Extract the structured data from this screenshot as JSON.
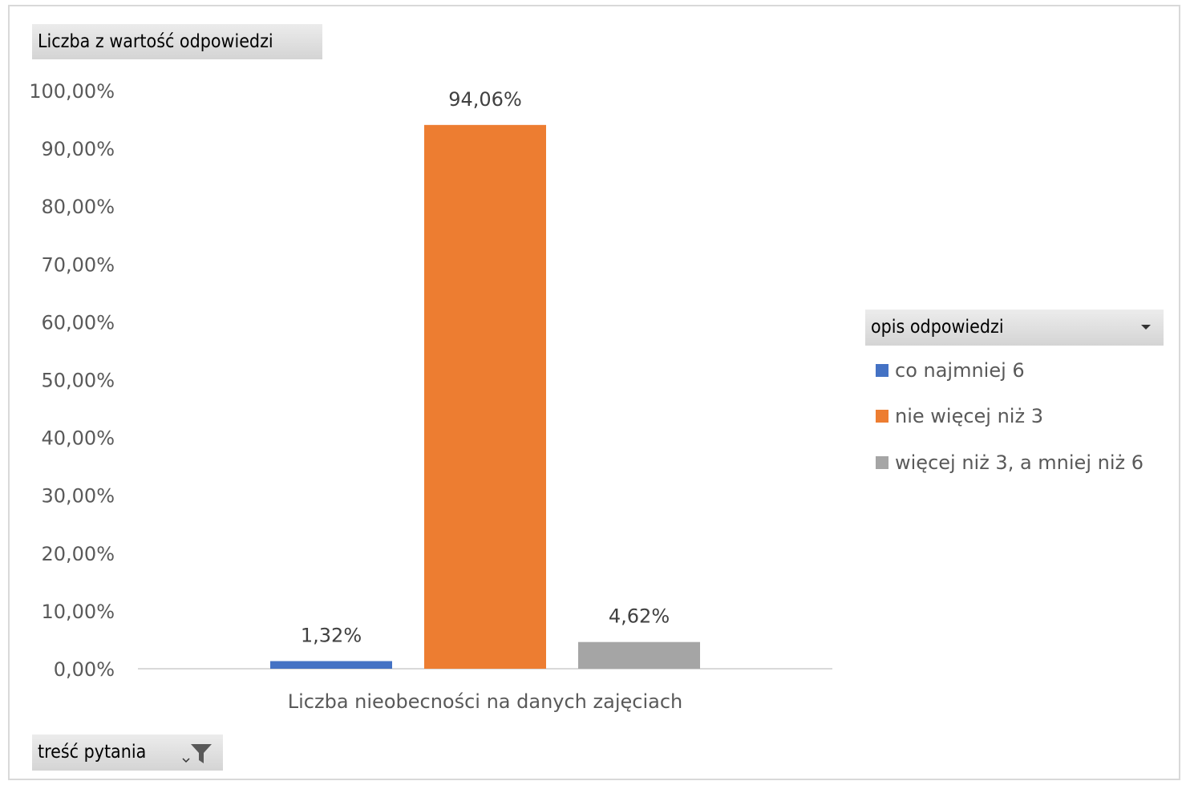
{
  "value_field_button": {
    "label": "Liczba z wartość odpowiedzi"
  },
  "legend_field_button": {
    "label": "opis odpowiedzi",
    "icon": "chevron-down-icon"
  },
  "row_field_button": {
    "label": "treść pytania",
    "icon": "filter-icon"
  },
  "chart_data": {
    "type": "bar",
    "categories": [
      "Liczba nieobecności na danych zajęciach"
    ],
    "series": [
      {
        "name": "co najmniej 6",
        "values": [
          1.32
        ],
        "label": "1,32%",
        "color": "#4472c4"
      },
      {
        "name": "nie więcej niż 3",
        "values": [
          94.06
        ],
        "label": "94,06%",
        "color": "#ed7d31"
      },
      {
        "name": "więcej niż 3, a mniej niż 6",
        "values": [
          4.62
        ],
        "label": "4,62%",
        "color": "#a5a5a5"
      }
    ],
    "ylim": [
      0,
      100
    ],
    "yticks": [
      0,
      10,
      20,
      30,
      40,
      50,
      60,
      70,
      80,
      90,
      100
    ],
    "ytick_labels": [
      "0,00%",
      "10,00%",
      "20,00%",
      "30,00%",
      "40,00%",
      "50,00%",
      "60,00%",
      "70,00%",
      "80,00%",
      "90,00%",
      "100,00%"
    ],
    "xlabel": "",
    "ylabel": "",
    "grid": false,
    "legend_position": "right"
  }
}
